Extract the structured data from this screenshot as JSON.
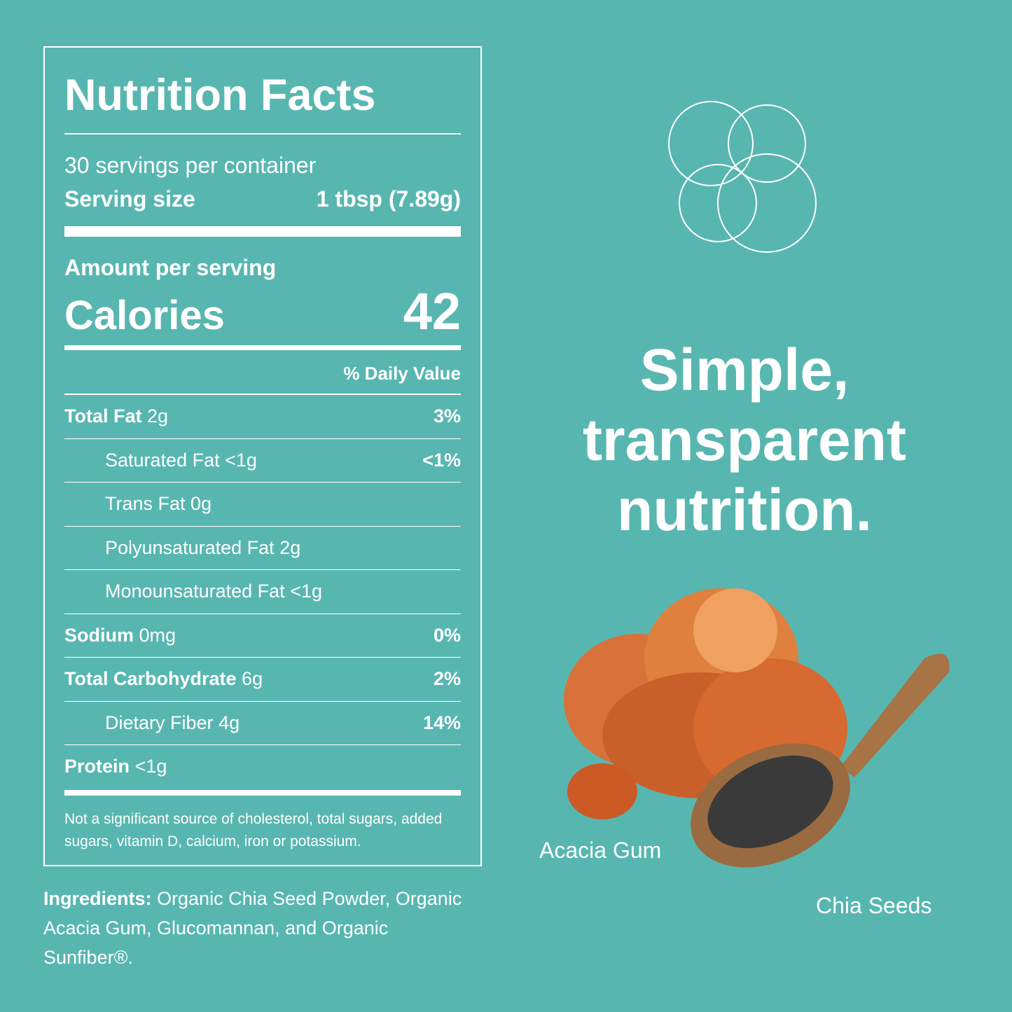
{
  "label": {
    "title": "Nutrition Facts",
    "servings": "30 servings per container",
    "serving_size_label": "Serving size",
    "serving_size_value": "1 tbsp (7.89g)",
    "amount_per_serving": "Amount per serving",
    "calories_label": "Calories",
    "calories": 42,
    "daily_value_header": "% Daily Value",
    "rows": [
      {
        "name": "Total Fat",
        "amount": "2g",
        "dv": "3%",
        "subrows": [
          {
            "name": "Saturated Fat",
            "amount": "<1g",
            "dv": "<1%"
          },
          {
            "name": "Trans Fat",
            "amount": "0g"
          },
          {
            "name": "Polyunsaturated Fat",
            "amount": "2g"
          },
          {
            "name": "Monounsaturated Fat",
            "amount": "<1g"
          }
        ]
      },
      {
        "name": "Sodium",
        "amount": "0mg",
        "dv": "0%"
      },
      {
        "name": "Total Carbohydrate",
        "amount": "6g",
        "dv": "2%",
        "subrows": [
          {
            "name": "Dietary Fiber",
            "amount": "4g",
            "dv": "14%"
          }
        ]
      },
      {
        "name": "Protein",
        "amount": "<1g"
      }
    ],
    "footnote": "Not a significant source of cholesterol, total sugars, added sugars, vitamin D, calcium, iron or potassium."
  },
  "ingredients": {
    "label": "Ingredients:",
    "text": "Organic Chia Seed Powder, Organic Acacia Gum, Glucomannan, and Organic Sunfiber®."
  },
  "headline": [
    "Simple,",
    "transparent",
    "nutrition."
  ],
  "image_labels": [
    "Acacia Gum",
    "Chia Seeds"
  ]
}
